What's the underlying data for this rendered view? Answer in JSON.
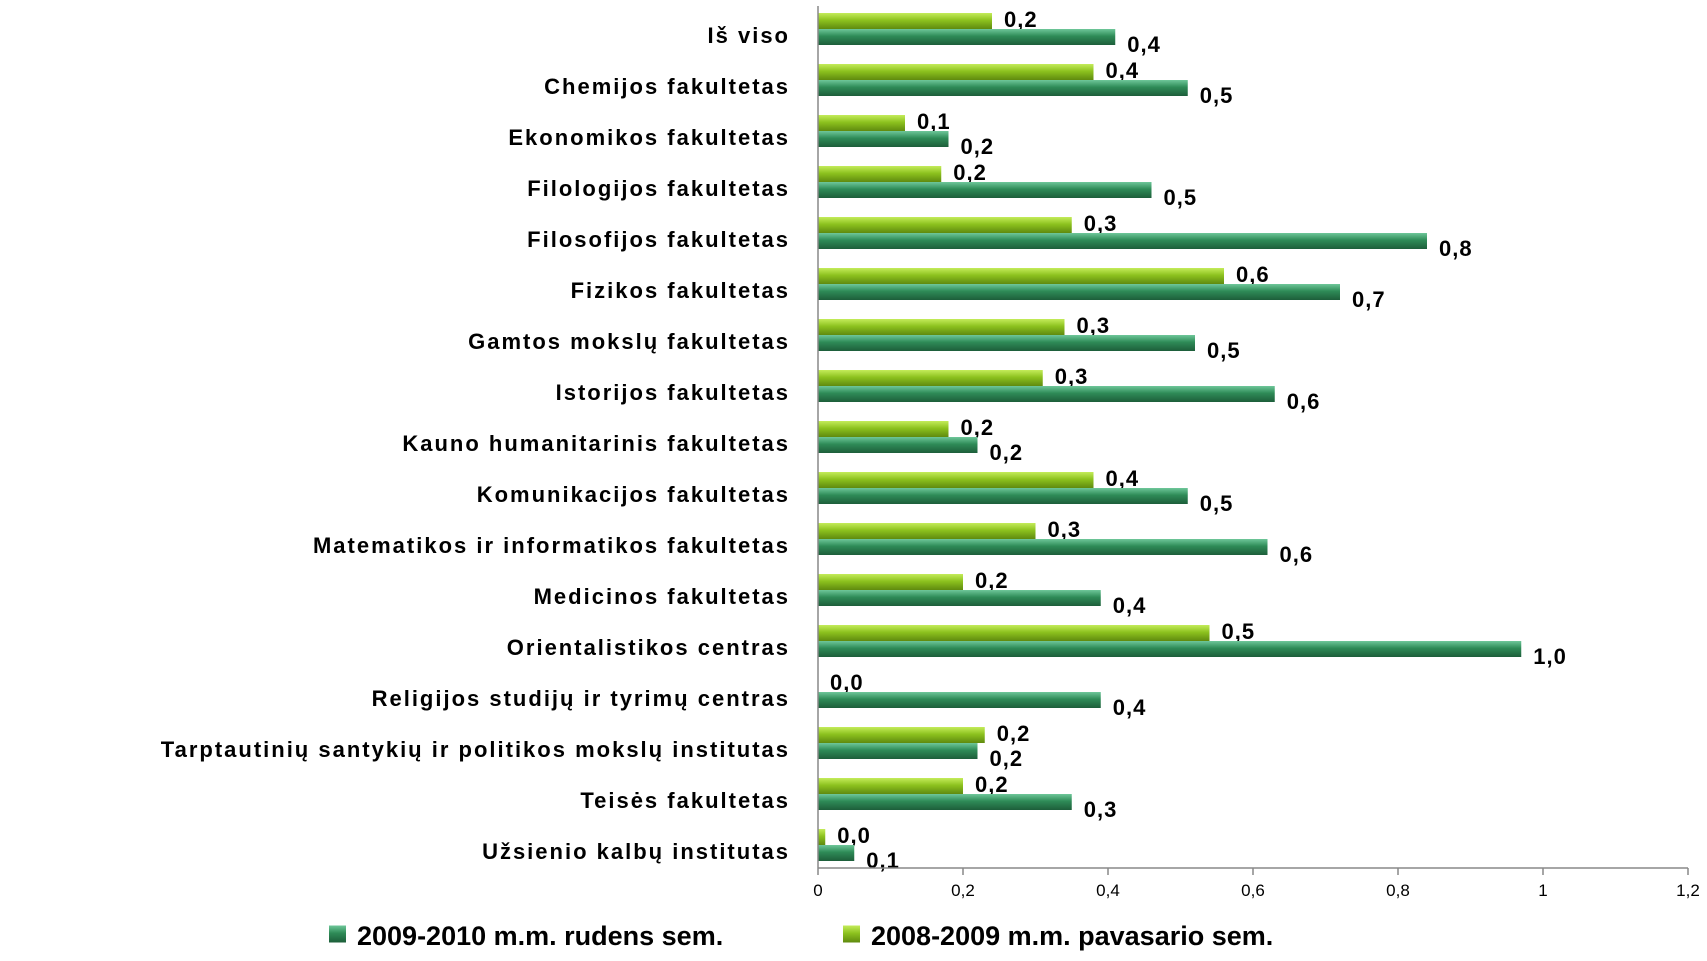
{
  "chart_data": {
    "type": "bar",
    "orientation": "horizontal",
    "categories": [
      "Iš viso",
      "Chemijos fakultetas",
      "Ekonomikos fakultetas",
      "Filologijos fakultetas",
      "Filosofijos fakultetas",
      "Fizikos fakultetas",
      "Gamtos mokslų fakultetas",
      "Istorijos fakultetas",
      "Kauno humanitarinis fakultetas",
      "Komunikacijos fakultetas",
      "Matematikos ir informatikos fakultetas",
      "Medicinos fakultetas",
      "Orientalistikos centras",
      "Religijos studijų ir tyrimų centras",
      "Tarptautinių santykių ir politikos mokslų institutas",
      "Teisės fakultetas",
      "Užsienio kalbų institutas"
    ],
    "series": [
      {
        "name": "2009-2010 m.m. rudens sem.",
        "color": "#2e8b57",
        "values": [
          0.41,
          0.51,
          0.18,
          0.46,
          0.84,
          0.72,
          0.52,
          0.63,
          0.22,
          0.51,
          0.62,
          0.39,
          0.97,
          0.39,
          0.22,
          0.35,
          0.05
        ],
        "labels": [
          "0,4",
          "0,5",
          "0,2",
          "0,5",
          "0,8",
          "0,7",
          "0,5",
          "0,6",
          "0,2",
          "0,5",
          "0,6",
          "0,4",
          "1,0",
          "0,4",
          "0,2",
          "0,3",
          "0,1"
        ]
      },
      {
        "name": "2008-2009 m.m. pavasario sem.",
        "color": "#8dc21f",
        "values": [
          0.24,
          0.38,
          0.12,
          0.17,
          0.35,
          0.56,
          0.34,
          0.31,
          0.18,
          0.38,
          0.3,
          0.2,
          0.54,
          0.0,
          0.23,
          0.2,
          0.01
        ],
        "labels": [
          "0,2",
          "0,4",
          "0,1",
          "0,2",
          "0,3",
          "0,6",
          "0,3",
          "0,3",
          "0,2",
          "0,4",
          "0,3",
          "0,2",
          "0,5",
          "0,0",
          "0,2",
          "0,2",
          "0,0"
        ]
      }
    ],
    "xlim": [
      0,
      1.2
    ],
    "xticks": [
      0,
      0.2,
      0.4,
      0.6,
      0.8,
      1,
      1.2
    ],
    "xtick_labels": [
      "0",
      "0,2",
      "0,4",
      "0,6",
      "0,8",
      "1",
      "1,2"
    ],
    "grid": false,
    "legend_position": "bottom"
  }
}
